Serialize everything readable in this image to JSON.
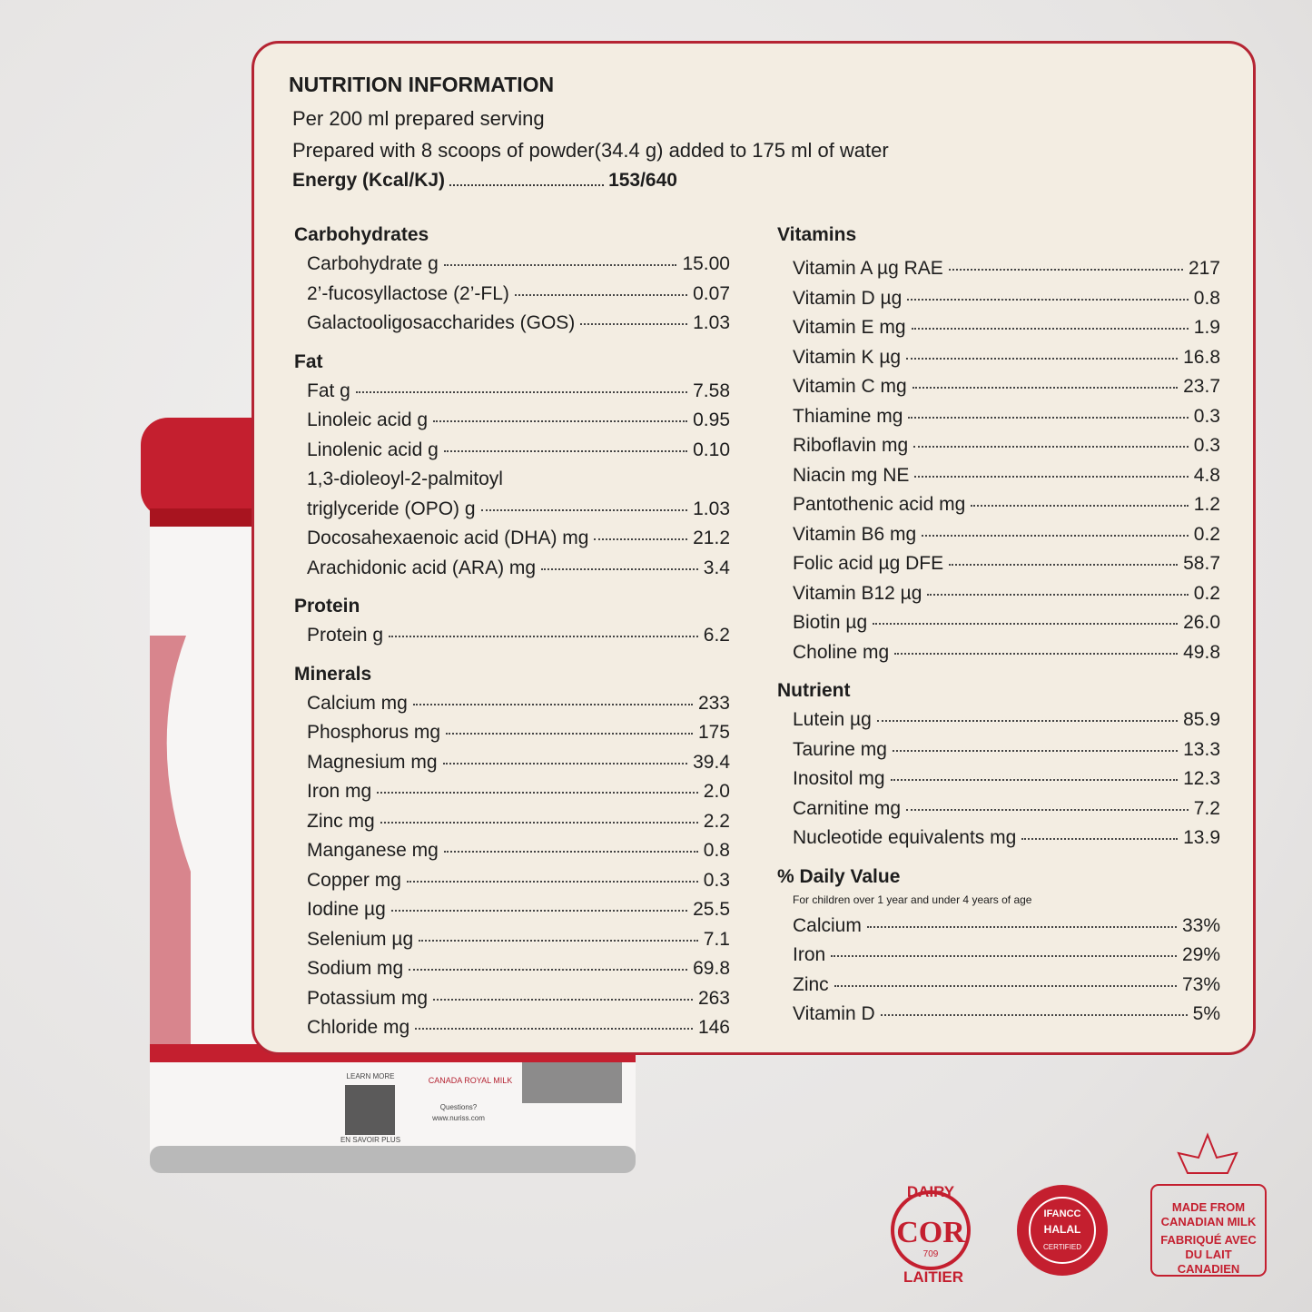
{
  "header": {
    "title": "NUTRITION INFORMATION",
    "serving": "Per 200 ml prepared serving",
    "preparation": "Prepared with 8 scoops of powder(34.4 g) added to 175 ml of water",
    "energy_label": "Energy (Kcal/KJ)",
    "energy_value": "153/640"
  },
  "columns": [
    {
      "sections": [
        {
          "title": "Carbohydrates",
          "items": [
            {
              "label": "Carbohydrate g",
              "value": "15.00"
            },
            {
              "label": "2’-fucosyllactose (2’-FL)",
              "value": "0.07"
            },
            {
              "label": "Galactooligosaccharides (GOS)",
              "value": "1.03"
            }
          ]
        },
        {
          "title": "Fat",
          "items": [
            {
              "label": "Fat g",
              "value": "7.58"
            },
            {
              "label": "Linoleic acid g",
              "value": "0.95"
            },
            {
              "label": "Linolenic acid g",
              "value": "0.10"
            },
            {
              "label": "1,3-dioleoyl-2-palmitoyl"
            },
            {
              "label": "triglyceride (OPO) g",
              "value": "1.03"
            },
            {
              "label": "Docosahexaenoic acid (DHA) mg",
              "value": "21.2"
            },
            {
              "label": "Arachidonic acid  (ARA) mg",
              "value": "3.4"
            }
          ]
        },
        {
          "title": "Protein",
          "items": [
            {
              "label": "Protein g",
              "value": "6.2"
            }
          ]
        },
        {
          "title": "Minerals",
          "items": [
            {
              "label": "Calcium mg",
              "value": "233"
            },
            {
              "label": "Phosphorus mg",
              "value": "175"
            },
            {
              "label": "Magnesium mg",
              "value": "39.4"
            },
            {
              "label": "Iron mg",
              "value": "2.0"
            },
            {
              "label": "Zinc mg",
              "value": "2.2"
            },
            {
              "label": "Manganese mg",
              "value": "0.8"
            },
            {
              "label": "Copper mg",
              "value": "0.3"
            },
            {
              "label": "Iodine µg",
              "value": "25.5"
            },
            {
              "label": "Selenium µg",
              "value": "7.1"
            },
            {
              "label": "Sodium mg",
              "value": "69.8"
            },
            {
              "label": "Potassium mg",
              "value": "263"
            },
            {
              "label": "Chloride mg",
              "value": "146"
            }
          ]
        }
      ]
    },
    {
      "sections": [
        {
          "title": "Vitamins",
          "items": [
            {
              "label": "Vitamin A µg RAE",
              "value": "217"
            },
            {
              "label": "Vitamin D µg",
              "value": "0.8"
            },
            {
              "label": "Vitamin E mg",
              "value": "1.9"
            },
            {
              "label": "Vitamin K µg",
              "value": "16.8"
            },
            {
              "label": "Vitamin C mg",
              "value": "23.7"
            },
            {
              "label": "Thiamine mg",
              "value": "0.3"
            },
            {
              "label": "Riboflavin mg",
              "value": "0.3"
            },
            {
              "label": "Niacin mg NE",
              "value": "4.8"
            },
            {
              "label": "Pantothenic acid mg",
              "value": "1.2"
            },
            {
              "label": "Vitamin B6 mg",
              "value": "0.2"
            },
            {
              "label": "Folic acid µg DFE",
              "value": "58.7"
            },
            {
              "label": "Vitamin B12 µg",
              "value": "0.2"
            },
            {
              "label": "Biotin µg",
              "value": "26.0"
            },
            {
              "label": "Choline mg",
              "value": "49.8"
            }
          ]
        },
        {
          "title": "Nutrient",
          "items": [
            {
              "label": "Lutein µg",
              "value": "85.9"
            },
            {
              "label": "Taurine mg",
              "value": "13.3"
            },
            {
              "label": "Inositol mg",
              "value": "12.3"
            },
            {
              "label": "Carnitine  mg",
              "value": "7.2"
            },
            {
              "label": "Nucleotide equivalents mg",
              "value": "13.9"
            }
          ]
        },
        {
          "title": "% Daily Value",
          "note": "For children over 1 year and under 4 years of age",
          "items": [
            {
              "label": "Calcium",
              "value": "33%"
            },
            {
              "label": "Iron",
              "value": "29%"
            },
            {
              "label": "Zinc",
              "value": "73%"
            },
            {
              "label": "Vitamin D",
              "value": "5%"
            }
          ]
        }
      ]
    }
  ],
  "can": {
    "brand": "CANADA ROYAL MILK",
    "learn_more": "LEARN MORE",
    "savoir": "EN SAVOIR PLUS",
    "questions": "Questions?",
    "site": "www.nuriss.com"
  },
  "badges": {
    "dairy_top": "DAIRY",
    "dairy_mark": "COR",
    "dairy_number": "709",
    "dairy_bottom": "LAITIER",
    "halal_org": "IFANCC",
    "halal": "HALAL",
    "halal_certified": "CERTIFIED",
    "milk_en": "MADE FROM CANADIAN MILK",
    "milk_fr": "FABRIQUÉ AVEC DU LAIT CANADIEN"
  }
}
